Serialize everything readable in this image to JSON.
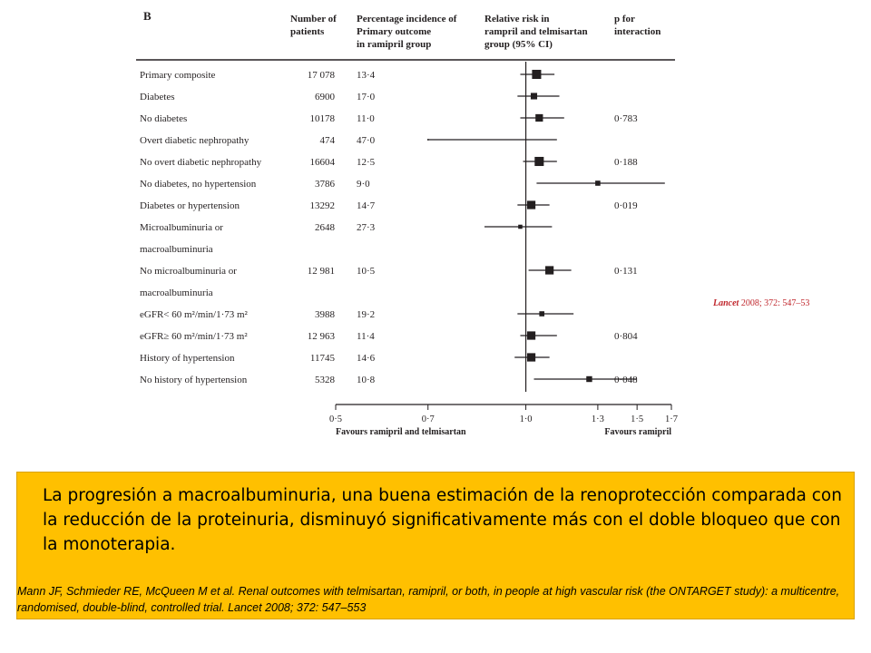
{
  "panel_letter": "B",
  "headers": {
    "patients": [
      "Number of",
      "patients"
    ],
    "incidence": [
      "Percentage incidence of",
      "Primary outcome",
      "in ramipril group"
    ],
    "risk": [
      "Relative risk in",
      "rampril and telmisartan",
      "group (95% CI)"
    ],
    "p": [
      "p for",
      "interaction"
    ]
  },
  "chart_data": {
    "type": "forest",
    "x_axis": {
      "scale": "log",
      "range": [
        0.5,
        1.7
      ],
      "ticks": [
        0.5,
        0.7,
        1.0,
        1.3,
        1.5,
        1.7
      ],
      "tick_labels": [
        "0·5",
        "0·7",
        "1·0",
        "1·3",
        "1·5",
        "1·7"
      ],
      "reference_line": 1.0,
      "left_label": "Favours ramipril and telmisartan",
      "right_label": "Favours ramipril"
    },
    "rows": [
      {
        "label": [
          "Primary composite"
        ],
        "n": "17 078",
        "incidence": "13·4",
        "rr": 1.04,
        "ci": [
          0.98,
          1.11
        ],
        "p": "",
        "weight": 5
      },
      {
        "label": [
          "Diabetes"
        ],
        "n": "6900",
        "incidence": "17·0",
        "rr": 1.03,
        "ci": [
          0.97,
          1.13
        ],
        "p": "",
        "weight": 2
      },
      {
        "label": [
          "No diabetes"
        ],
        "n": "10178",
        "incidence": "11·0",
        "rr": 1.05,
        "ci": [
          0.98,
          1.15
        ],
        "p": "0·783",
        "weight": 3
      },
      {
        "label": [
          "Overt diabetic nephropathy"
        ],
        "n": "474",
        "incidence": "47·0",
        "rr": 0.7,
        "ci": [
          0.7,
          1.12
        ],
        "p": "",
        "weight": 0
      },
      {
        "label": [
          "No overt diabetic nephropathy"
        ],
        "n": "16604",
        "incidence": "12·5",
        "rr": 1.05,
        "ci": [
          0.99,
          1.12
        ],
        "p": "0·188",
        "weight": 5
      },
      {
        "label": [
          "No diabetes, no hypertension"
        ],
        "n": "3786",
        "incidence": "9·0",
        "rr": 1.3,
        "ci": [
          1.04,
          1.66
        ],
        "p": "",
        "weight": 1
      },
      {
        "label": [
          "Diabetes or hypertension"
        ],
        "n": "13292",
        "incidence": "14·7",
        "rr": 1.02,
        "ci": [
          0.97,
          1.09
        ],
        "p": "0·019",
        "weight": 4
      },
      {
        "label": [
          "Microalbuminuria or",
          "macroalbuminuria"
        ],
        "n": "2648",
        "incidence": "27·3",
        "rr": 0.98,
        "ci": [
          0.86,
          1.1
        ],
        "p": "",
        "weight": 0.5
      },
      {
        "label": [
          "No microalbuminuria or",
          "macroalbuminuria"
        ],
        "n": "12 981",
        "incidence": "10·5",
        "rr": 1.09,
        "ci": [
          1.01,
          1.18
        ],
        "p": "0·131",
        "weight": 4
      },
      {
        "label": [
          "eGFR< 60 m²/min/1·73 m²"
        ],
        "n": "3988",
        "incidence": "19·2",
        "rr": 1.06,
        "ci": [
          0.97,
          1.19
        ],
        "p": "",
        "weight": 1
      },
      {
        "label": [
          "eGFR≥ 60 m²/min/1·73 m²"
        ],
        "n": "12 963",
        "incidence": "11·4",
        "rr": 1.02,
        "ci": [
          0.98,
          1.12
        ],
        "p": "0·804",
        "weight": 4
      },
      {
        "label": [
          "History of hypertension"
        ],
        "n": "11745",
        "incidence": "14·6",
        "rr": 1.02,
        "ci": [
          0.96,
          1.09
        ],
        "p": "",
        "weight": 4
      },
      {
        "label": [
          "No history of hypertension"
        ],
        "n": "5328",
        "incidence": "10·8",
        "rr": 1.26,
        "ci": [
          1.03,
          1.5
        ],
        "p": "0·048",
        "weight": 1.5
      }
    ]
  },
  "citation": {
    "journal": "Lancet",
    "rest": " 2008; 372: 547–53"
  },
  "summary": "La progresión a macroalbuminuria, una buena estimación de la renoprotección comparada con la reducción de la proteinuria, disminuyó significativamente más con el doble bloqueo que con la monoterapia.",
  "reference": "Mann JF, Schmieder RE, McQueen M et al. Renal outcomes with telmisartan, ramipril, or both, in people at high vascular risk (the ONTARGET study): a multicentre, randomised, double-blind, controlled trial. Lancet 2008; 372: 547–553",
  "colors": {
    "ink": "#231f20",
    "summary_bg": "#ffc000",
    "citation": "#c0272d"
  }
}
